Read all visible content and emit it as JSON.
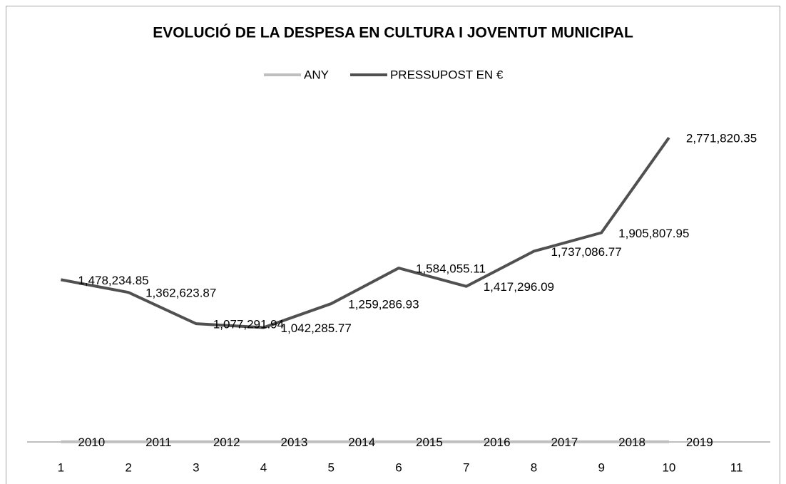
{
  "chart_data": {
    "type": "line",
    "title": "EVOLUCIÓ DE LA DESPESA EN CULTURA I JOVENTUT MUNICIPAL",
    "categories": [
      1,
      2,
      3,
      4,
      5,
      6,
      7,
      8,
      9,
      10,
      11
    ],
    "series": [
      {
        "name": "ANY",
        "color": "#bfbfbf",
        "values": [
          2010,
          2011,
          2012,
          2013,
          2014,
          2015,
          2016,
          2017,
          2018,
          2019,
          null
        ]
      },
      {
        "name": "PRESSUPOST EN €",
        "color": "#505050",
        "values": [
          1478234.85,
          1362623.87,
          1077291.94,
          1042285.77,
          1259286.93,
          1584055.11,
          1417296.09,
          1737086.77,
          1905807.95,
          2771820.35,
          null
        ],
        "value_labels": [
          "1,478,234.85",
          "1,362,623.87",
          "1,077,291.94",
          "1,042,285.77",
          "1,259,286.93",
          "1,584,055.11",
          "1,417,296.09",
          "1,737,086.77",
          "1,905,807.95",
          "2,771,820.35",
          null
        ]
      }
    ],
    "ylim": [
      0,
      3000000
    ],
    "legend": "top"
  }
}
